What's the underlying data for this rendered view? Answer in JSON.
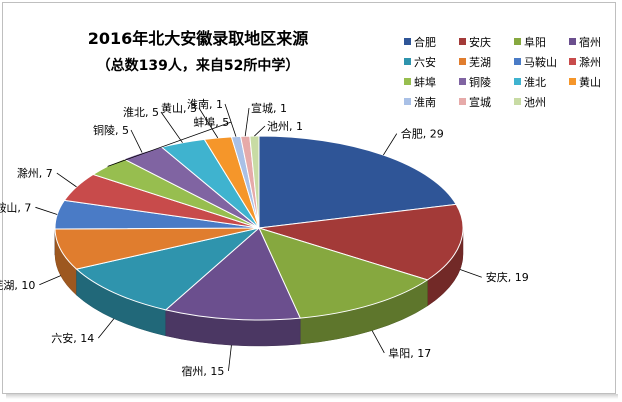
{
  "chart_data": {
    "type": "pie",
    "title": "2016年北大安徽录取地区来源",
    "subtitle": "（总数139人，来自52所中学）",
    "legend_position": "top-right",
    "slices": [
      {
        "label": "合肥",
        "value": 29,
        "color": "#2f5597"
      },
      {
        "label": "安庆",
        "value": 19,
        "color": "#a33a38"
      },
      {
        "label": "阜阳",
        "value": 17,
        "color": "#86a83f"
      },
      {
        "label": "宿州",
        "value": 15,
        "color": "#6b4f8e"
      },
      {
        "label": "六安",
        "value": 14,
        "color": "#2f94ad"
      },
      {
        "label": "芜湖",
        "value": 10,
        "color": "#e07d2e"
      },
      {
        "label": "马鞍山",
        "value": 7,
        "color": "#4a7bc6"
      },
      {
        "label": "滁州",
        "value": 7,
        "color": "#c84b4b"
      },
      {
        "label": "蚌埠",
        "value": 5,
        "color": "#97be4f"
      },
      {
        "label": "铜陵",
        "value": 5,
        "color": "#8064a2"
      },
      {
        "label": "淮北",
        "value": 5,
        "color": "#3fb3cf"
      },
      {
        "label": "黄山",
        "value": 3,
        "color": "#f5962a"
      },
      {
        "label": "淮南",
        "value": 1,
        "color": "#a9c0e6"
      },
      {
        "label": "宣城",
        "value": 1,
        "color": "#e6aaa9"
      },
      {
        "label": "池州",
        "value": 1,
        "color": "#c8dba4"
      }
    ]
  }
}
